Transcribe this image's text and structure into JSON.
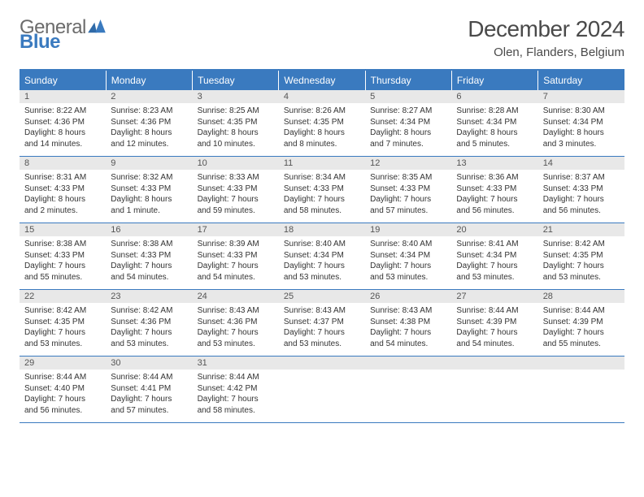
{
  "brand": {
    "part1": "General",
    "part2": "Blue"
  },
  "title": {
    "month": "December 2024",
    "location": "Olen, Flanders, Belgium"
  },
  "colors": {
    "accent": "#3a7abf",
    "header_bg": "#3a7abf",
    "daynum_bg": "#e8e8e8",
    "text": "#333333"
  },
  "weekdays": [
    "Sunday",
    "Monday",
    "Tuesday",
    "Wednesday",
    "Thursday",
    "Friday",
    "Saturday"
  ],
  "weeks": [
    [
      {
        "n": "1",
        "sr": "Sunrise: 8:22 AM",
        "ss": "Sunset: 4:36 PM",
        "dl": "Daylight: 8 hours and 14 minutes."
      },
      {
        "n": "2",
        "sr": "Sunrise: 8:23 AM",
        "ss": "Sunset: 4:36 PM",
        "dl": "Daylight: 8 hours and 12 minutes."
      },
      {
        "n": "3",
        "sr": "Sunrise: 8:25 AM",
        "ss": "Sunset: 4:35 PM",
        "dl": "Daylight: 8 hours and 10 minutes."
      },
      {
        "n": "4",
        "sr": "Sunrise: 8:26 AM",
        "ss": "Sunset: 4:35 PM",
        "dl": "Daylight: 8 hours and 8 minutes."
      },
      {
        "n": "5",
        "sr": "Sunrise: 8:27 AM",
        "ss": "Sunset: 4:34 PM",
        "dl": "Daylight: 8 hours and 7 minutes."
      },
      {
        "n": "6",
        "sr": "Sunrise: 8:28 AM",
        "ss": "Sunset: 4:34 PM",
        "dl": "Daylight: 8 hours and 5 minutes."
      },
      {
        "n": "7",
        "sr": "Sunrise: 8:30 AM",
        "ss": "Sunset: 4:34 PM",
        "dl": "Daylight: 8 hours and 3 minutes."
      }
    ],
    [
      {
        "n": "8",
        "sr": "Sunrise: 8:31 AM",
        "ss": "Sunset: 4:33 PM",
        "dl": "Daylight: 8 hours and 2 minutes."
      },
      {
        "n": "9",
        "sr": "Sunrise: 8:32 AM",
        "ss": "Sunset: 4:33 PM",
        "dl": "Daylight: 8 hours and 1 minute."
      },
      {
        "n": "10",
        "sr": "Sunrise: 8:33 AM",
        "ss": "Sunset: 4:33 PM",
        "dl": "Daylight: 7 hours and 59 minutes."
      },
      {
        "n": "11",
        "sr": "Sunrise: 8:34 AM",
        "ss": "Sunset: 4:33 PM",
        "dl": "Daylight: 7 hours and 58 minutes."
      },
      {
        "n": "12",
        "sr": "Sunrise: 8:35 AM",
        "ss": "Sunset: 4:33 PM",
        "dl": "Daylight: 7 hours and 57 minutes."
      },
      {
        "n": "13",
        "sr": "Sunrise: 8:36 AM",
        "ss": "Sunset: 4:33 PM",
        "dl": "Daylight: 7 hours and 56 minutes."
      },
      {
        "n": "14",
        "sr": "Sunrise: 8:37 AM",
        "ss": "Sunset: 4:33 PM",
        "dl": "Daylight: 7 hours and 56 minutes."
      }
    ],
    [
      {
        "n": "15",
        "sr": "Sunrise: 8:38 AM",
        "ss": "Sunset: 4:33 PM",
        "dl": "Daylight: 7 hours and 55 minutes."
      },
      {
        "n": "16",
        "sr": "Sunrise: 8:38 AM",
        "ss": "Sunset: 4:33 PM",
        "dl": "Daylight: 7 hours and 54 minutes."
      },
      {
        "n": "17",
        "sr": "Sunrise: 8:39 AM",
        "ss": "Sunset: 4:33 PM",
        "dl": "Daylight: 7 hours and 54 minutes."
      },
      {
        "n": "18",
        "sr": "Sunrise: 8:40 AM",
        "ss": "Sunset: 4:34 PM",
        "dl": "Daylight: 7 hours and 53 minutes."
      },
      {
        "n": "19",
        "sr": "Sunrise: 8:40 AM",
        "ss": "Sunset: 4:34 PM",
        "dl": "Daylight: 7 hours and 53 minutes."
      },
      {
        "n": "20",
        "sr": "Sunrise: 8:41 AM",
        "ss": "Sunset: 4:34 PM",
        "dl": "Daylight: 7 hours and 53 minutes."
      },
      {
        "n": "21",
        "sr": "Sunrise: 8:42 AM",
        "ss": "Sunset: 4:35 PM",
        "dl": "Daylight: 7 hours and 53 minutes."
      }
    ],
    [
      {
        "n": "22",
        "sr": "Sunrise: 8:42 AM",
        "ss": "Sunset: 4:35 PM",
        "dl": "Daylight: 7 hours and 53 minutes."
      },
      {
        "n": "23",
        "sr": "Sunrise: 8:42 AM",
        "ss": "Sunset: 4:36 PM",
        "dl": "Daylight: 7 hours and 53 minutes."
      },
      {
        "n": "24",
        "sr": "Sunrise: 8:43 AM",
        "ss": "Sunset: 4:36 PM",
        "dl": "Daylight: 7 hours and 53 minutes."
      },
      {
        "n": "25",
        "sr": "Sunrise: 8:43 AM",
        "ss": "Sunset: 4:37 PM",
        "dl": "Daylight: 7 hours and 53 minutes."
      },
      {
        "n": "26",
        "sr": "Sunrise: 8:43 AM",
        "ss": "Sunset: 4:38 PM",
        "dl": "Daylight: 7 hours and 54 minutes."
      },
      {
        "n": "27",
        "sr": "Sunrise: 8:44 AM",
        "ss": "Sunset: 4:39 PM",
        "dl": "Daylight: 7 hours and 54 minutes."
      },
      {
        "n": "28",
        "sr": "Sunrise: 8:44 AM",
        "ss": "Sunset: 4:39 PM",
        "dl": "Daylight: 7 hours and 55 minutes."
      }
    ],
    [
      {
        "n": "29",
        "sr": "Sunrise: 8:44 AM",
        "ss": "Sunset: 4:40 PM",
        "dl": "Daylight: 7 hours and 56 minutes."
      },
      {
        "n": "30",
        "sr": "Sunrise: 8:44 AM",
        "ss": "Sunset: 4:41 PM",
        "dl": "Daylight: 7 hours and 57 minutes."
      },
      {
        "n": "31",
        "sr": "Sunrise: 8:44 AM",
        "ss": "Sunset: 4:42 PM",
        "dl": "Daylight: 7 hours and 58 minutes."
      },
      {
        "empty": true
      },
      {
        "empty": true
      },
      {
        "empty": true
      },
      {
        "empty": true
      }
    ]
  ]
}
